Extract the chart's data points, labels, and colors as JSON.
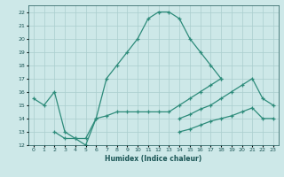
{
  "xlabel": "Humidex (Indice chaleur)",
  "line1_x": [
    0,
    1,
    2,
    3,
    4,
    5,
    6,
    7,
    8,
    9,
    10,
    11,
    12,
    13,
    14,
    15,
    16,
    17,
    18
  ],
  "line1_y": [
    15.5,
    15.0,
    16.0,
    13.0,
    12.5,
    12.0,
    14.0,
    17.0,
    18.0,
    19.0,
    20.0,
    21.5,
    22.0,
    22.0,
    21.5,
    20.0,
    19.0,
    18.0,
    17.0
  ],
  "line2_x": [
    2,
    3,
    4,
    5,
    6,
    7,
    8,
    9,
    10,
    11,
    12,
    13,
    14,
    15,
    16,
    17,
    18
  ],
  "line2_y": [
    13.0,
    12.5,
    12.5,
    12.5,
    14.0,
    14.2,
    14.5,
    14.5,
    14.5,
    14.5,
    14.5,
    14.5,
    15.0,
    15.5,
    16.0,
    16.5,
    17.0
  ],
  "line3_x": [
    14,
    15,
    16,
    17,
    18,
    19,
    20,
    21,
    22,
    23
  ],
  "line3_y": [
    14.0,
    14.3,
    14.7,
    15.0,
    15.5,
    16.0,
    16.5,
    17.0,
    15.5,
    15.0
  ],
  "line4_x": [
    14,
    15,
    16,
    17,
    18,
    19,
    20,
    21,
    22,
    23
  ],
  "line4_y": [
    13.0,
    13.2,
    13.5,
    13.8,
    14.0,
    14.2,
    14.5,
    14.8,
    14.0,
    14.0
  ],
  "line_color": "#2d8b7a",
  "bg_color": "#cde8e8",
  "grid_color": "#aacece",
  "xlim": [
    -0.5,
    23.5
  ],
  "ylim": [
    12,
    22.5
  ],
  "yticks": [
    12,
    13,
    14,
    15,
    16,
    17,
    18,
    19,
    20,
    21,
    22
  ],
  "xticks": [
    0,
    1,
    2,
    3,
    4,
    5,
    6,
    7,
    8,
    9,
    10,
    11,
    12,
    13,
    14,
    15,
    16,
    17,
    18,
    19,
    20,
    21,
    22,
    23
  ]
}
